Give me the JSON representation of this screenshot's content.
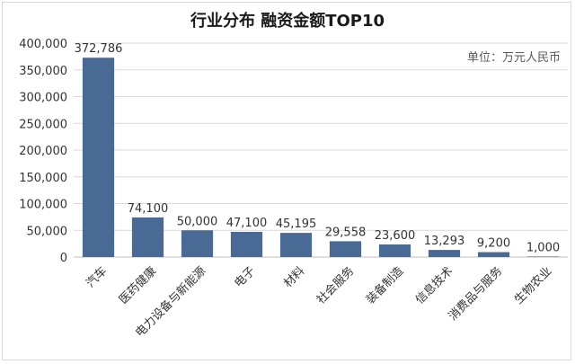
{
  "chart_data": {
    "type": "bar",
    "title": "行业分布 融资金额TOP10",
    "unit_note": "单位：万元人民币",
    "categories": [
      "汽车",
      "医药健康",
      "电力设备与新能源",
      "电子",
      "材料",
      "社会服务",
      "装备制造",
      "信息技术",
      "消费品与服务",
      "生物农业"
    ],
    "values": [
      372786,
      74100,
      50000,
      47100,
      45195,
      29558,
      23600,
      13293,
      9200,
      1000
    ],
    "data_labels": [
      "372,786",
      "74,100",
      "50,000",
      "47,100",
      "45,195",
      "29,558",
      "23,600",
      "13,293",
      "9,200",
      "1,000"
    ],
    "ylim": [
      0,
      400000
    ],
    "yticks": [
      0,
      50000,
      100000,
      150000,
      200000,
      250000,
      300000,
      350000,
      400000
    ],
    "ytick_labels": [
      "0",
      "50,000",
      "100,000",
      "150,000",
      "200,000",
      "250,000",
      "300,000",
      "350,000",
      "400,000"
    ],
    "xlabel": "",
    "ylabel": "",
    "grid": true,
    "bar_color": "#4a6a96",
    "grid_color": "#d9d9d9"
  }
}
